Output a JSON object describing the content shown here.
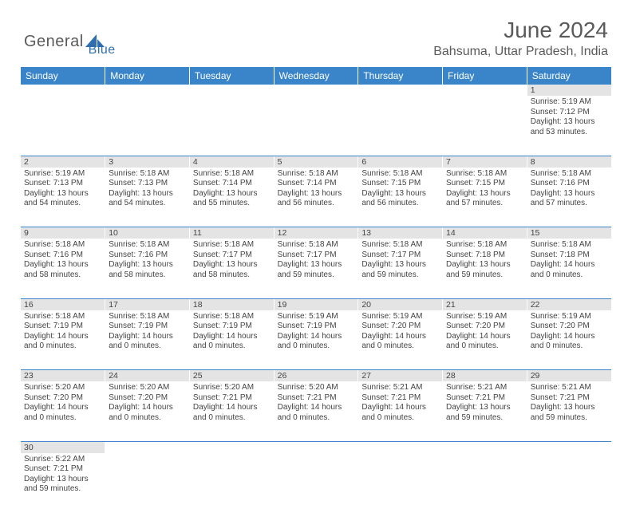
{
  "brand": {
    "general": "General",
    "blue": "Blue"
  },
  "title": "June 2024",
  "location": "Bahsuma, Uttar Pradesh, India",
  "colors": {
    "header_bg": "#3a85c9",
    "header_text": "#ffffff",
    "daynum_bg": "#e4e4e4",
    "cell_border": "#3a85c9",
    "text": "#444444",
    "logo_gray": "#5a5a5a",
    "logo_blue": "#2f6fb0"
  },
  "weekdays": [
    "Sunday",
    "Monday",
    "Tuesday",
    "Wednesday",
    "Thursday",
    "Friday",
    "Saturday"
  ],
  "weeks": [
    {
      "nums": [
        "",
        "",
        "",
        "",
        "",
        "",
        "1"
      ],
      "cells": [
        "",
        "",
        "",
        "",
        "",
        "",
        "Sunrise: 5:19 AM\nSunset: 7:12 PM\nDaylight: 13 hours and 53 minutes."
      ]
    },
    {
      "nums": [
        "2",
        "3",
        "4",
        "5",
        "6",
        "7",
        "8"
      ],
      "cells": [
        "Sunrise: 5:19 AM\nSunset: 7:13 PM\nDaylight: 13 hours and 54 minutes.",
        "Sunrise: 5:18 AM\nSunset: 7:13 PM\nDaylight: 13 hours and 54 minutes.",
        "Sunrise: 5:18 AM\nSunset: 7:14 PM\nDaylight: 13 hours and 55 minutes.",
        "Sunrise: 5:18 AM\nSunset: 7:14 PM\nDaylight: 13 hours and 56 minutes.",
        "Sunrise: 5:18 AM\nSunset: 7:15 PM\nDaylight: 13 hours and 56 minutes.",
        "Sunrise: 5:18 AM\nSunset: 7:15 PM\nDaylight: 13 hours and 57 minutes.",
        "Sunrise: 5:18 AM\nSunset: 7:16 PM\nDaylight: 13 hours and 57 minutes."
      ]
    },
    {
      "nums": [
        "9",
        "10",
        "11",
        "12",
        "13",
        "14",
        "15"
      ],
      "cells": [
        "Sunrise: 5:18 AM\nSunset: 7:16 PM\nDaylight: 13 hours and 58 minutes.",
        "Sunrise: 5:18 AM\nSunset: 7:16 PM\nDaylight: 13 hours and 58 minutes.",
        "Sunrise: 5:18 AM\nSunset: 7:17 PM\nDaylight: 13 hours and 58 minutes.",
        "Sunrise: 5:18 AM\nSunset: 7:17 PM\nDaylight: 13 hours and 59 minutes.",
        "Sunrise: 5:18 AM\nSunset: 7:17 PM\nDaylight: 13 hours and 59 minutes.",
        "Sunrise: 5:18 AM\nSunset: 7:18 PM\nDaylight: 13 hours and 59 minutes.",
        "Sunrise: 5:18 AM\nSunset: 7:18 PM\nDaylight: 14 hours and 0 minutes."
      ]
    },
    {
      "nums": [
        "16",
        "17",
        "18",
        "19",
        "20",
        "21",
        "22"
      ],
      "cells": [
        "Sunrise: 5:18 AM\nSunset: 7:19 PM\nDaylight: 14 hours and 0 minutes.",
        "Sunrise: 5:18 AM\nSunset: 7:19 PM\nDaylight: 14 hours and 0 minutes.",
        "Sunrise: 5:18 AM\nSunset: 7:19 PM\nDaylight: 14 hours and 0 minutes.",
        "Sunrise: 5:19 AM\nSunset: 7:19 PM\nDaylight: 14 hours and 0 minutes.",
        "Sunrise: 5:19 AM\nSunset: 7:20 PM\nDaylight: 14 hours and 0 minutes.",
        "Sunrise: 5:19 AM\nSunset: 7:20 PM\nDaylight: 14 hours and 0 minutes.",
        "Sunrise: 5:19 AM\nSunset: 7:20 PM\nDaylight: 14 hours and 0 minutes."
      ]
    },
    {
      "nums": [
        "23",
        "24",
        "25",
        "26",
        "27",
        "28",
        "29"
      ],
      "cells": [
        "Sunrise: 5:20 AM\nSunset: 7:20 PM\nDaylight: 14 hours and 0 minutes.",
        "Sunrise: 5:20 AM\nSunset: 7:20 PM\nDaylight: 14 hours and 0 minutes.",
        "Sunrise: 5:20 AM\nSunset: 7:21 PM\nDaylight: 14 hours and 0 minutes.",
        "Sunrise: 5:20 AM\nSunset: 7:21 PM\nDaylight: 14 hours and 0 minutes.",
        "Sunrise: 5:21 AM\nSunset: 7:21 PM\nDaylight: 14 hours and 0 minutes.",
        "Sunrise: 5:21 AM\nSunset: 7:21 PM\nDaylight: 13 hours and 59 minutes.",
        "Sunrise: 5:21 AM\nSunset: 7:21 PM\nDaylight: 13 hours and 59 minutes."
      ]
    },
    {
      "nums": [
        "30",
        "",
        "",
        "",
        "",
        "",
        ""
      ],
      "cells": [
        "Sunrise: 5:22 AM\nSunset: 7:21 PM\nDaylight: 13 hours and 59 minutes.",
        "",
        "",
        "",
        "",
        "",
        ""
      ]
    }
  ]
}
